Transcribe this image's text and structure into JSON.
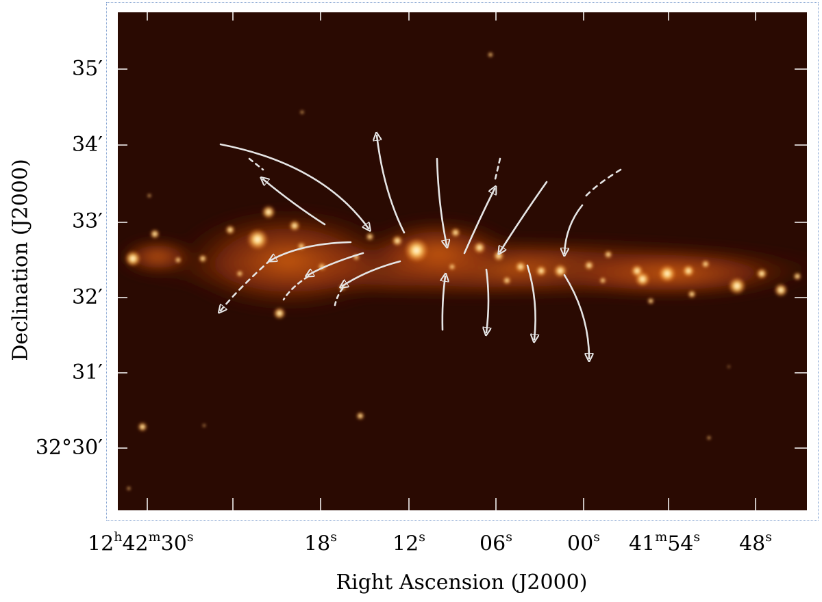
{
  "figure": {
    "xlabel": "Right Ascension (J2000)",
    "ylabel": "Declination (J2000)",
    "y_ticks": [
      "35′",
      "34′",
      "33′",
      "32′",
      "31′",
      "32°30′"
    ],
    "x_ticks": [
      {
        "base": "12",
        "s1": "h",
        "mid": "42",
        "s2": "m",
        "sec": "30",
        "s3": "s"
      },
      {
        "sec": "18",
        "s3": "s"
      },
      {
        "sec": "12",
        "s3": "s"
      },
      {
        "sec": "06",
        "s3": "s"
      },
      {
        "sec": "00",
        "s3": "s"
      },
      {
        "mid": "41",
        "s2": "m",
        "sec": "54",
        "s3": "s"
      },
      {
        "sec": "48",
        "s3": "s"
      }
    ]
  },
  "colors": {
    "background": "#2a0a02",
    "glow_core": "#fff6da",
    "glow_mid": "#ffae44",
    "glow_edge": "#b23c06",
    "arrows": "#e6e6e6"
  }
}
